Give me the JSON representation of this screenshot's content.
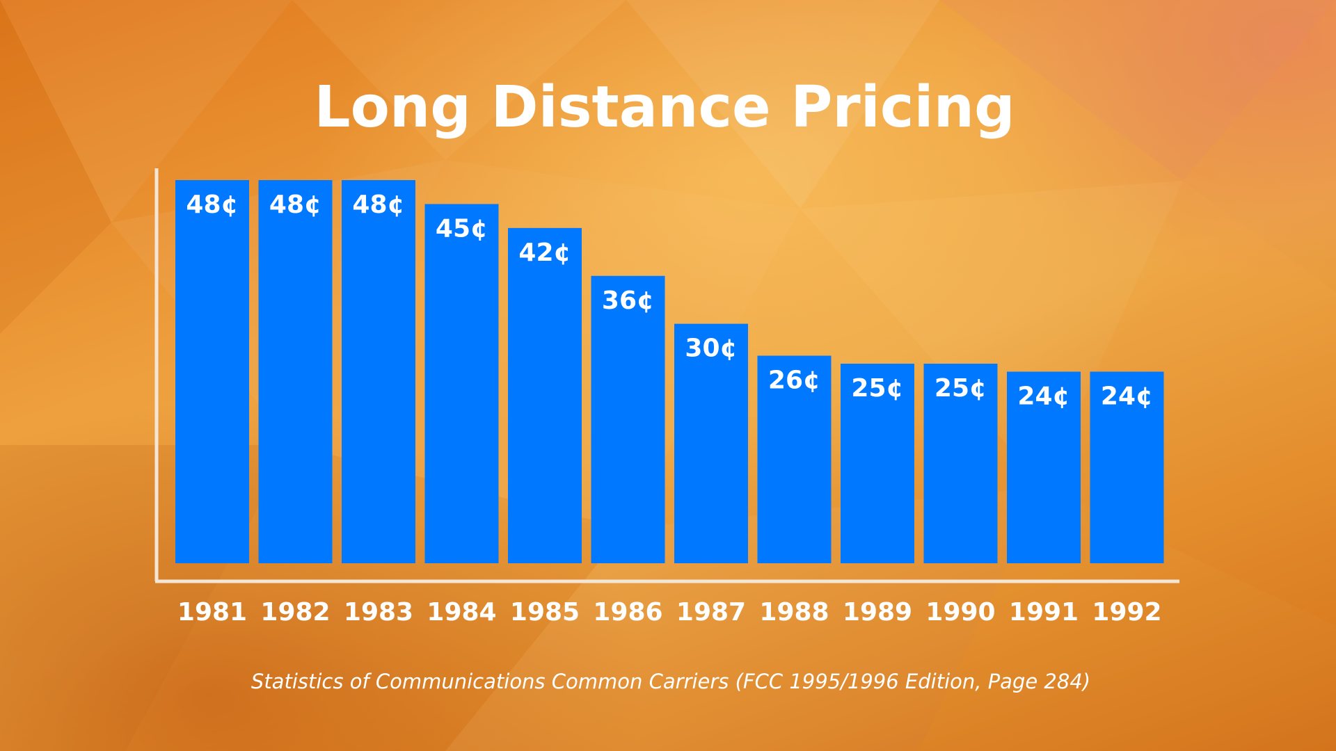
{
  "chart_data": {
    "type": "bar",
    "title": "Long Distance Pricing",
    "categories": [
      "1981",
      "1982",
      "1983",
      "1984",
      "1985",
      "1986",
      "1987",
      "1988",
      "1989",
      "1990",
      "1991",
      "1992"
    ],
    "values": [
      48,
      48,
      48,
      45,
      42,
      36,
      30,
      26,
      25,
      25,
      24,
      24
    ],
    "value_labels": [
      "48¢",
      "48¢",
      "48¢",
      "45¢",
      "42¢",
      "36¢",
      "30¢",
      "26¢",
      "25¢",
      "25¢",
      "24¢",
      "24¢"
    ],
    "unit": "¢",
    "xlabel": "",
    "ylabel": "",
    "ylim": [
      0,
      48
    ],
    "grid": false,
    "legend": "none",
    "source": "Statistics of Communications Common Carriers (FCC 1995/1996 Edition, Page 284)"
  },
  "colors": {
    "bar": "#0078ff",
    "axis": "#f3e6d6",
    "text": "#ffffff"
  }
}
